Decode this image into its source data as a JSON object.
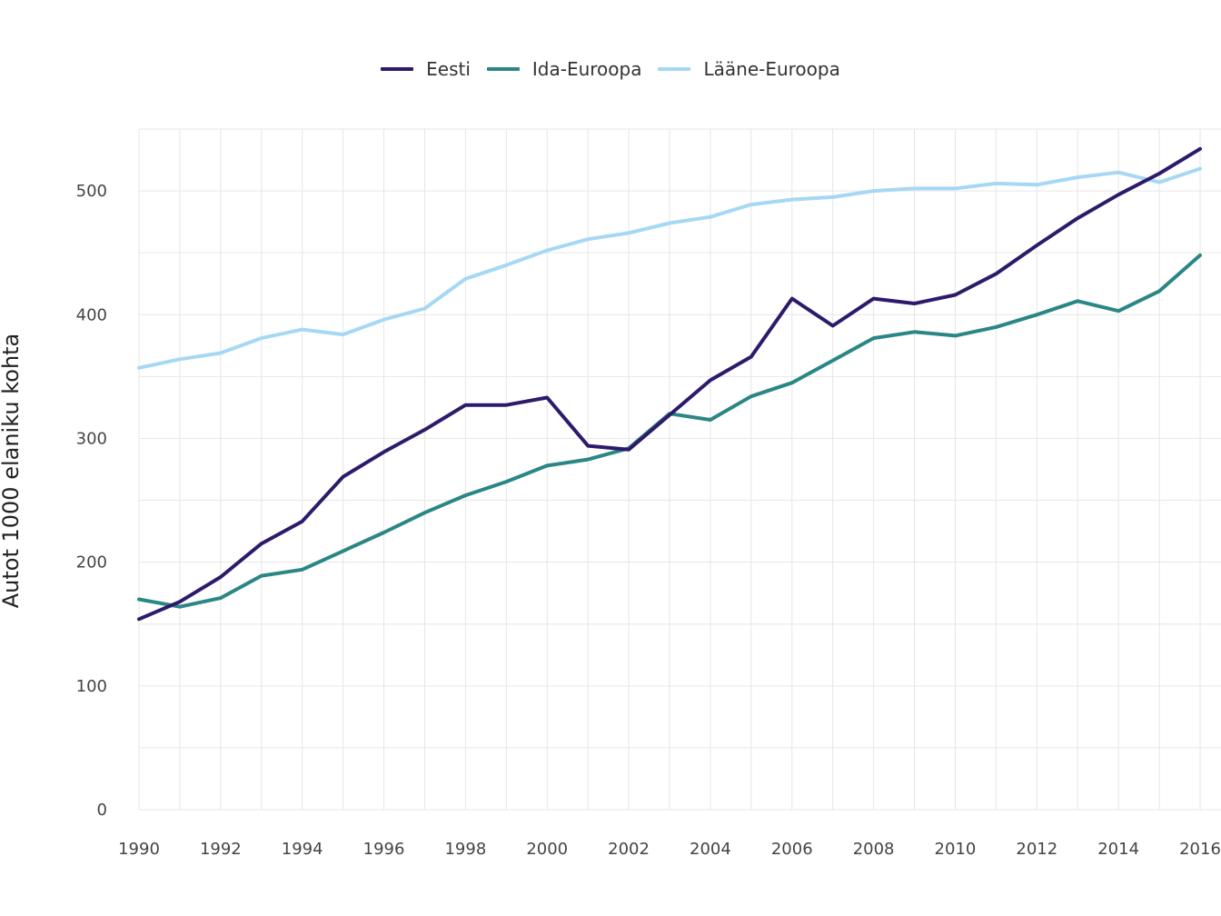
{
  "chart_data": {
    "type": "line",
    "title": "",
    "xlabel": "",
    "ylabel": "Autot 1000 elaniku kohta",
    "x": [
      1990,
      1991,
      1992,
      1993,
      1994,
      1995,
      1996,
      1997,
      1998,
      1999,
      2000,
      2001,
      2002,
      2003,
      2004,
      2005,
      2006,
      2007,
      2008,
      2009,
      2010,
      2011,
      2012,
      2013,
      2014,
      2015,
      2016
    ],
    "xlim": [
      1990,
      2016
    ],
    "ylim": [
      0,
      550
    ],
    "x_ticks": [
      "1990",
      "1992",
      "1994",
      "1996",
      "1998",
      "2000",
      "2002",
      "2004",
      "2006",
      "2008",
      "2010",
      "2012",
      "2014",
      "2016"
    ],
    "y_ticks": [
      "0",
      "100",
      "200",
      "300",
      "400",
      "500"
    ],
    "grid": true,
    "legend_position": "top",
    "series": [
      {
        "name": "Eesti",
        "color": "#2e1a6b",
        "values": [
          154,
          168,
          188,
          215,
          233,
          269,
          289,
          307,
          327,
          327,
          333,
          294,
          291,
          319,
          347,
          366,
          413,
          391,
          413,
          409,
          416,
          433,
          456,
          478,
          497,
          514,
          534
        ]
      },
      {
        "name": "Ida-Euroopa",
        "color": "#2b8686",
        "values": [
          170,
          164,
          171,
          189,
          194,
          209,
          224,
          240,
          254,
          265,
          278,
          283,
          292,
          320,
          315,
          334,
          345,
          363,
          381,
          386,
          383,
          390,
          400,
          411,
          403,
          419,
          448
        ]
      },
      {
        "name": "Lääne-Euroopa",
        "color": "#a6d8f4",
        "values": [
          357,
          364,
          369,
          381,
          388,
          384,
          396,
          405,
          429,
          440,
          452,
          461,
          466,
          474,
          479,
          489,
          493,
          495,
          500,
          502,
          502,
          506,
          505,
          511,
          515,
          507,
          518
        ]
      }
    ]
  }
}
